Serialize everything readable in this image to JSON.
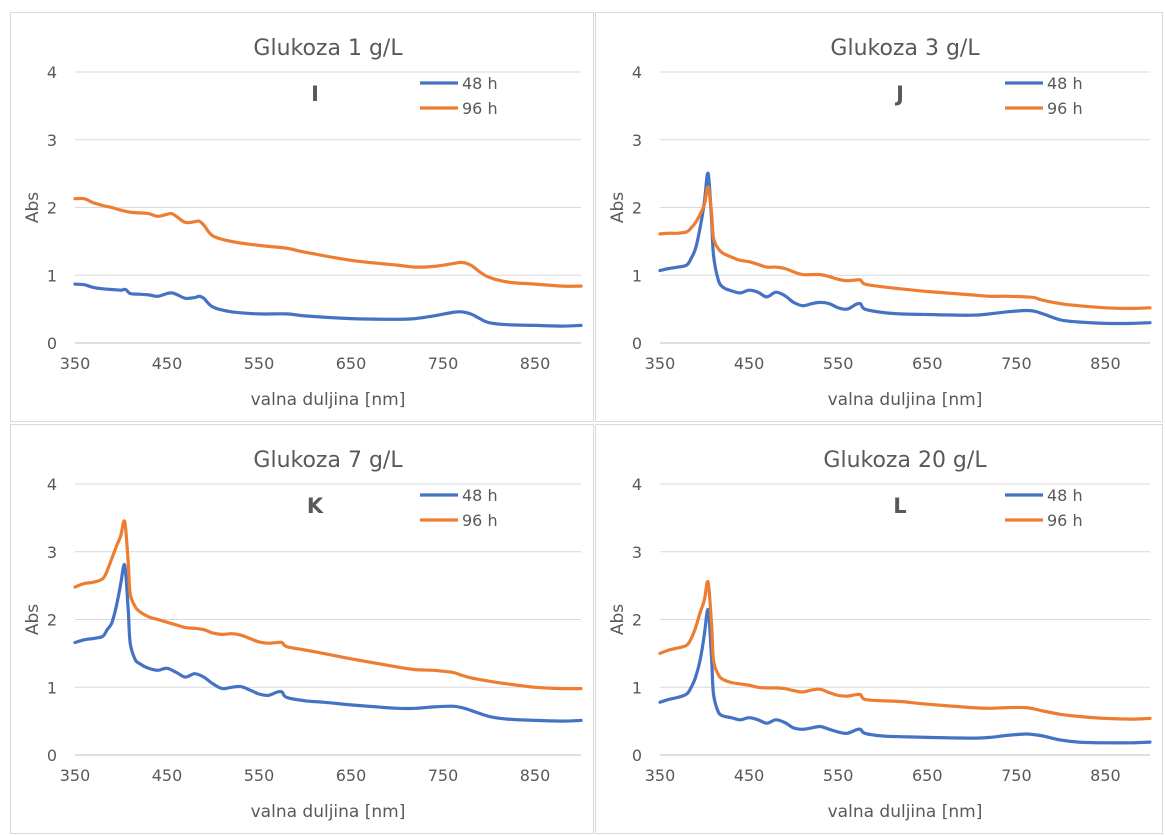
{
  "chart_data": [
    {
      "type": "line",
      "title": "Glukoza 1 g/L",
      "panel_letter": "I",
      "xlabel": "valna duljina [nm]",
      "ylabel": "Abs",
      "xlim": [
        350,
        900
      ],
      "ylim": [
        0,
        4
      ],
      "x_ticks": [
        350,
        450,
        550,
        650,
        750,
        850
      ],
      "y_ticks": [
        0,
        1,
        2,
        3,
        4
      ],
      "legend_position": "top-right",
      "series": [
        {
          "name": "48 h",
          "color": "#4472C4",
          "x": [
            350,
            360,
            370,
            380,
            390,
            400,
            405,
            410,
            420,
            430,
            440,
            450,
            455,
            460,
            470,
            480,
            485,
            490,
            500,
            520,
            550,
            580,
            600,
            650,
            700,
            720,
            740,
            760,
            770,
            780,
            790,
            800,
            820,
            850,
            880,
            900
          ],
          "y": [
            0.87,
            0.86,
            0.82,
            0.8,
            0.79,
            0.78,
            0.79,
            0.73,
            0.72,
            0.71,
            0.69,
            0.73,
            0.74,
            0.72,
            0.66,
            0.67,
            0.69,
            0.66,
            0.53,
            0.46,
            0.43,
            0.43,
            0.4,
            0.36,
            0.35,
            0.36,
            0.4,
            0.45,
            0.46,
            0.43,
            0.36,
            0.3,
            0.27,
            0.26,
            0.25,
            0.26
          ]
        },
        {
          "name": "96 h",
          "color": "#ED7D31",
          "x": [
            350,
            360,
            370,
            380,
            390,
            400,
            410,
            420,
            430,
            440,
            450,
            455,
            460,
            470,
            480,
            485,
            490,
            500,
            520,
            550,
            580,
            600,
            650,
            700,
            720,
            740,
            760,
            770,
            780,
            790,
            800,
            820,
            850,
            880,
            900
          ],
          "y": [
            2.13,
            2.13,
            2.07,
            2.03,
            2.0,
            1.96,
            1.93,
            1.92,
            1.91,
            1.87,
            1.9,
            1.91,
            1.87,
            1.78,
            1.79,
            1.8,
            1.74,
            1.58,
            1.5,
            1.44,
            1.4,
            1.34,
            1.22,
            1.15,
            1.12,
            1.13,
            1.17,
            1.19,
            1.15,
            1.05,
            0.97,
            0.9,
            0.87,
            0.84,
            0.84
          ]
        }
      ]
    },
    {
      "type": "line",
      "title": "Glukoza 3 g/L",
      "panel_letter": "J",
      "xlabel": "valna duljina [nm]",
      "ylabel": "Abs",
      "xlim": [
        350,
        900
      ],
      "ylim": [
        0,
        4
      ],
      "x_ticks": [
        350,
        450,
        550,
        650,
        750,
        850
      ],
      "y_ticks": [
        0,
        1,
        2,
        3,
        4
      ],
      "legend_position": "top-right",
      "series": [
        {
          "name": "48 h",
          "color": "#4472C4",
          "x": [
            350,
            360,
            370,
            380,
            385,
            390,
            395,
            400,
            403,
            405,
            408,
            410,
            415,
            420,
            430,
            440,
            450,
            460,
            470,
            480,
            490,
            500,
            510,
            520,
            530,
            540,
            550,
            560,
            570,
            575,
            580,
            600,
            620,
            650,
            700,
            720,
            740,
            760,
            770,
            780,
            800,
            820,
            850,
            880,
            900
          ],
          "y": [
            1.07,
            1.1,
            1.12,
            1.15,
            1.25,
            1.4,
            1.7,
            2.1,
            2.48,
            2.4,
            1.8,
            1.3,
            0.95,
            0.83,
            0.77,
            0.74,
            0.78,
            0.75,
            0.68,
            0.75,
            0.7,
            0.6,
            0.55,
            0.58,
            0.6,
            0.58,
            0.52,
            0.5,
            0.57,
            0.58,
            0.5,
            0.45,
            0.43,
            0.42,
            0.41,
            0.43,
            0.46,
            0.48,
            0.47,
            0.43,
            0.34,
            0.31,
            0.29,
            0.29,
            0.3
          ]
        },
        {
          "name": "96 h",
          "color": "#ED7D31",
          "x": [
            350,
            360,
            370,
            380,
            385,
            390,
            395,
            400,
            403,
            405,
            408,
            410,
            415,
            420,
            430,
            440,
            450,
            460,
            470,
            480,
            490,
            500,
            510,
            520,
            530,
            540,
            550,
            560,
            570,
            575,
            580,
            600,
            620,
            650,
            700,
            720,
            740,
            760,
            770,
            780,
            800,
            820,
            850,
            880,
            900
          ],
          "y": [
            1.61,
            1.62,
            1.62,
            1.64,
            1.7,
            1.78,
            1.9,
            2.05,
            2.28,
            2.25,
            1.9,
            1.55,
            1.4,
            1.33,
            1.27,
            1.22,
            1.2,
            1.16,
            1.12,
            1.12,
            1.1,
            1.05,
            1.01,
            1.01,
            1.01,
            0.98,
            0.94,
            0.92,
            0.93,
            0.93,
            0.87,
            0.83,
            0.8,
            0.76,
            0.71,
            0.69,
            0.69,
            0.68,
            0.67,
            0.63,
            0.58,
            0.55,
            0.52,
            0.51,
            0.52
          ]
        }
      ]
    },
    {
      "type": "line",
      "title": "Glukoza 7 g/L",
      "panel_letter": "K",
      "xlabel": "valna duljina [nm]",
      "ylabel": "Abs",
      "xlim": [
        350,
        900
      ],
      "ylim": [
        0,
        4
      ],
      "x_ticks": [
        350,
        450,
        550,
        650,
        750,
        850
      ],
      "y_ticks": [
        0,
        1,
        2,
        3,
        4
      ],
      "legend_position": "top-right",
      "series": [
        {
          "name": "48 h",
          "color": "#4472C4",
          "x": [
            350,
            360,
            370,
            380,
            385,
            390,
            395,
            400,
            403,
            405,
            408,
            410,
            415,
            420,
            430,
            440,
            450,
            460,
            470,
            480,
            490,
            500,
            510,
            520,
            530,
            540,
            550,
            560,
            570,
            575,
            580,
            600,
            620,
            650,
            700,
            720,
            740,
            760,
            770,
            780,
            800,
            820,
            850,
            880,
            900
          ],
          "y": [
            1.66,
            1.7,
            1.72,
            1.75,
            1.85,
            1.95,
            2.2,
            2.55,
            2.8,
            2.7,
            2.1,
            1.65,
            1.42,
            1.35,
            1.28,
            1.25,
            1.28,
            1.22,
            1.15,
            1.2,
            1.15,
            1.05,
            0.98,
            1.0,
            1.01,
            0.96,
            0.9,
            0.88,
            0.93,
            0.93,
            0.85,
            0.8,
            0.78,
            0.74,
            0.69,
            0.69,
            0.71,
            0.72,
            0.7,
            0.66,
            0.57,
            0.53,
            0.51,
            0.5,
            0.51
          ]
        },
        {
          "name": "96 h",
          "color": "#ED7D31",
          "x": [
            350,
            360,
            370,
            380,
            385,
            390,
            395,
            400,
            403,
            405,
            408,
            410,
            415,
            420,
            430,
            440,
            450,
            460,
            470,
            480,
            490,
            500,
            510,
            520,
            530,
            540,
            550,
            560,
            570,
            575,
            580,
            600,
            620,
            650,
            700,
            720,
            740,
            760,
            770,
            780,
            800,
            820,
            850,
            880,
            900
          ],
          "y": [
            2.48,
            2.53,
            2.55,
            2.6,
            2.72,
            2.9,
            3.08,
            3.25,
            3.45,
            3.35,
            2.8,
            2.38,
            2.2,
            2.12,
            2.04,
            2.0,
            1.96,
            1.92,
            1.88,
            1.87,
            1.85,
            1.8,
            1.78,
            1.79,
            1.77,
            1.72,
            1.67,
            1.65,
            1.66,
            1.66,
            1.6,
            1.55,
            1.5,
            1.42,
            1.3,
            1.26,
            1.25,
            1.22,
            1.18,
            1.14,
            1.09,
            1.05,
            1.0,
            0.98,
            0.98
          ]
        }
      ]
    },
    {
      "type": "line",
      "title": "Glukoza 20 g/L",
      "panel_letter": "L",
      "xlabel": "valna duljina [nm]",
      "ylabel": "Abs",
      "xlim": [
        350,
        900
      ],
      "ylim": [
        0,
        4
      ],
      "x_ticks": [
        350,
        450,
        550,
        650,
        750,
        850
      ],
      "y_ticks": [
        0,
        1,
        2,
        3,
        4
      ],
      "legend_position": "top-right",
      "series": [
        {
          "name": "48 h",
          "color": "#4472C4",
          "x": [
            350,
            360,
            370,
            380,
            385,
            390,
            395,
            400,
            403,
            405,
            408,
            410,
            415,
            420,
            430,
            440,
            450,
            460,
            470,
            480,
            490,
            500,
            510,
            520,
            530,
            540,
            550,
            560,
            570,
            575,
            580,
            600,
            620,
            650,
            700,
            720,
            740,
            760,
            770,
            780,
            800,
            820,
            850,
            880,
            900
          ],
          "y": [
            0.78,
            0.82,
            0.85,
            0.9,
            1.0,
            1.15,
            1.4,
            1.8,
            2.12,
            2.05,
            1.4,
            0.9,
            0.65,
            0.58,
            0.55,
            0.52,
            0.55,
            0.52,
            0.47,
            0.52,
            0.48,
            0.4,
            0.38,
            0.4,
            0.42,
            0.38,
            0.34,
            0.32,
            0.37,
            0.38,
            0.32,
            0.28,
            0.27,
            0.26,
            0.25,
            0.26,
            0.29,
            0.31,
            0.3,
            0.28,
            0.22,
            0.19,
            0.18,
            0.18,
            0.19
          ]
        },
        {
          "name": "96 h",
          "color": "#ED7D31",
          "x": [
            350,
            360,
            370,
            380,
            385,
            390,
            395,
            400,
            403,
            405,
            408,
            410,
            415,
            420,
            430,
            440,
            450,
            460,
            470,
            480,
            490,
            500,
            510,
            520,
            530,
            540,
            550,
            560,
            570,
            575,
            580,
            600,
            620,
            650,
            700,
            720,
            740,
            760,
            770,
            780,
            800,
            820,
            850,
            880,
            900
          ],
          "y": [
            1.5,
            1.55,
            1.58,
            1.62,
            1.72,
            1.88,
            2.1,
            2.3,
            2.55,
            2.45,
            1.9,
            1.4,
            1.2,
            1.12,
            1.07,
            1.05,
            1.03,
            1.0,
            0.99,
            0.99,
            0.98,
            0.95,
            0.93,
            0.96,
            0.97,
            0.92,
            0.88,
            0.87,
            0.89,
            0.89,
            0.82,
            0.8,
            0.79,
            0.75,
            0.7,
            0.69,
            0.7,
            0.7,
            0.68,
            0.65,
            0.6,
            0.57,
            0.54,
            0.53,
            0.54
          ]
        }
      ]
    }
  ]
}
